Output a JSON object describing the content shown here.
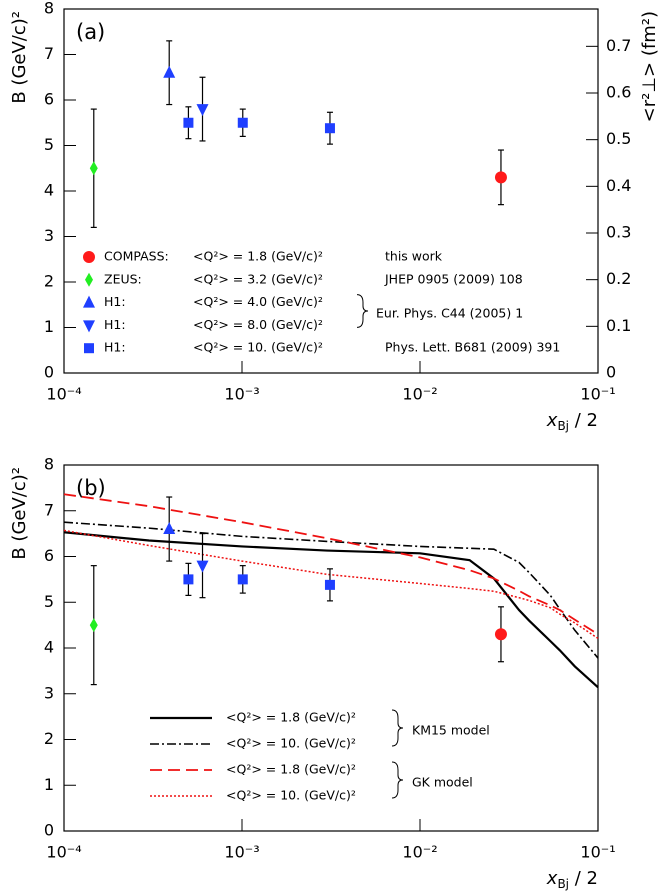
{
  "chart_data": [
    {
      "type": "scatter",
      "panel_label": "(a)",
      "ylabel": "B (GeV/c)²",
      "y2label": "<r²⊥> (fm²)",
      "xlabel": "x",
      "xlabel_sub": "Bj",
      "xlabel_suffix": " / 2",
      "xscale": "log",
      "xlim": [
        0.0001,
        0.1
      ],
      "xticks": [
        {
          "value": 0.0001,
          "label": "10⁻⁴"
        },
        {
          "value": 0.001,
          "label": "10⁻³"
        },
        {
          "value": 0.01,
          "label": "10⁻²"
        },
        {
          "value": 0.1,
          "label": "10⁻¹"
        }
      ],
      "ylim": [
        0,
        8
      ],
      "yticks": [
        0,
        1,
        2,
        3,
        4,
        5,
        6,
        7,
        8
      ],
      "y2lim": [
        0,
        0.78
      ],
      "y2ticks": [
        0,
        0.1,
        0.2,
        0.3,
        0.4,
        0.5,
        0.6,
        0.7
      ],
      "series": [
        {
          "name": "COMPASS:",
          "q2": "<Q²> = 1.8 (GeV/c)²",
          "note": "this work",
          "marker": "circle",
          "color": "#ff1a1a",
          "x": [
            0.0285
          ],
          "values": [
            4.3
          ],
          "errors": [
            0.6
          ]
        },
        {
          "name": "ZEUS:",
          "q2": "<Q²> = 3.2 (GeV/c)²",
          "note": "JHEP 0905 (2009) 108",
          "marker": "diamond",
          "color": "#22ee22",
          "x": [
            0.000147
          ],
          "values": [
            4.5
          ],
          "errors": [
            1.3
          ]
        },
        {
          "name": "H1:",
          "q2": "<Q²> = 4.0 (GeV/c)²",
          "note": "Eur. Phys. C44 (2005) 1",
          "marker": "triangle-up",
          "color": "#1f3fff",
          "x": [
            0.00039
          ],
          "values": [
            6.6
          ],
          "errors": [
            0.7
          ]
        },
        {
          "name": "H1:",
          "q2": "<Q²> = 8.0 (GeV/c)²",
          "marker": "triangle-down",
          "color": "#1f3fff",
          "x": [
            0.0006
          ],
          "values": [
            5.8
          ],
          "errors": [
            0.7
          ]
        },
        {
          "name": "H1:",
          "q2": "<Q²> = 10. (GeV/c)²",
          "note": "Phys. Lett. B681 (2009) 391",
          "marker": "square",
          "color": "#1f3fff",
          "x": [
            0.0005,
            0.00101,
            0.00312
          ],
          "values": [
            5.5,
            5.5,
            5.38
          ],
          "errors": [
            0.35,
            0.3,
            0.35
          ]
        }
      ]
    },
    {
      "type": "line",
      "panel_label": "(b)",
      "ylabel": "B (GeV/c)²",
      "xlabel": "x",
      "xlabel_sub": "Bj",
      "xlabel_suffix": " / 2",
      "xscale": "log",
      "xlim": [
        0.0001,
        0.1
      ],
      "xticks": [
        {
          "value": 0.0001,
          "label": "10⁻⁴"
        },
        {
          "value": 0.001,
          "label": "10⁻³"
        },
        {
          "value": 0.01,
          "label": "10⁻²"
        },
        {
          "value": 0.1,
          "label": "10⁻¹"
        }
      ],
      "ylim": [
        0,
        8
      ],
      "yticks": [
        0,
        1,
        2,
        3,
        4,
        5,
        6,
        7,
        8
      ],
      "legend_groups": [
        "KM15 model",
        "GK model"
      ],
      "series": [
        {
          "name": "<Q²> = 1.8 (GeV/c)²",
          "dash": "solid",
          "color": "#000000",
          "x": [
            0.0001,
            0.0003,
            0.001,
            0.003,
            0.01,
            0.019,
            0.026,
            0.036,
            0.041,
            0.054,
            0.061,
            0.074,
            0.1
          ],
          "values": [
            6.53,
            6.35,
            6.22,
            6.13,
            6.07,
            5.92,
            5.52,
            4.83,
            4.6,
            4.15,
            3.95,
            3.6,
            3.14
          ]
        },
        {
          "name": "<Q²> = 10. (GeV/c)²",
          "dash": "dashdot",
          "color": "#000000",
          "x": [
            0.0001,
            0.0003,
            0.001,
            0.003,
            0.01,
            0.019,
            0.026,
            0.036,
            0.041,
            0.054,
            0.061,
            0.074,
            0.1
          ],
          "values": [
            6.75,
            6.62,
            6.44,
            6.33,
            6.22,
            6.18,
            6.16,
            5.87,
            5.65,
            5.15,
            4.85,
            4.39,
            3.78
          ]
        },
        {
          "name": "<Q²> = 1.8 (GeV/c)²",
          "dash": "dashed",
          "color": "#ee1111",
          "x": [
            0.0001,
            0.0003,
            0.001,
            0.003,
            0.01,
            0.019,
            0.026,
            0.036,
            0.041,
            0.054,
            0.061,
            0.074,
            0.1
          ],
          "values": [
            7.36,
            7.1,
            6.75,
            6.4,
            5.98,
            5.7,
            5.52,
            5.25,
            5.13,
            4.93,
            4.83,
            4.62,
            4.3
          ]
        },
        {
          "name": "<Q²> = 10. (GeV/c)²",
          "dash": "dotted",
          "color": "#ee1111",
          "x": [
            0.0001,
            0.0003,
            0.001,
            0.003,
            0.01,
            0.019,
            0.026,
            0.036,
            0.041,
            0.054,
            0.061,
            0.074,
            0.1
          ],
          "values": [
            6.57,
            6.24,
            5.9,
            5.61,
            5.41,
            5.3,
            5.24,
            5.1,
            5.04,
            4.88,
            4.74,
            4.55,
            4.21
          ]
        },
        {
          "marker": "circle",
          "color": "#ff1a1a",
          "x": [
            0.0285
          ],
          "values": [
            4.3
          ],
          "errors": [
            0.6
          ]
        },
        {
          "marker": "diamond",
          "color": "#22ee22",
          "x": [
            0.000147
          ],
          "values": [
            4.5
          ],
          "errors": [
            1.3
          ]
        },
        {
          "marker": "triangle-up",
          "color": "#1f3fff",
          "x": [
            0.00039
          ],
          "values": [
            6.6
          ],
          "errors": [
            0.7
          ]
        },
        {
          "marker": "triangle-down",
          "color": "#1f3fff",
          "x": [
            0.0006
          ],
          "values": [
            5.8
          ],
          "errors": [
            0.7
          ]
        },
        {
          "marker": "square",
          "color": "#1f3fff",
          "x": [
            0.0005,
            0.00101,
            0.00312
          ],
          "values": [
            5.5,
            5.5,
            5.38
          ],
          "errors": [
            0.35,
            0.3,
            0.35
          ]
        }
      ]
    }
  ]
}
